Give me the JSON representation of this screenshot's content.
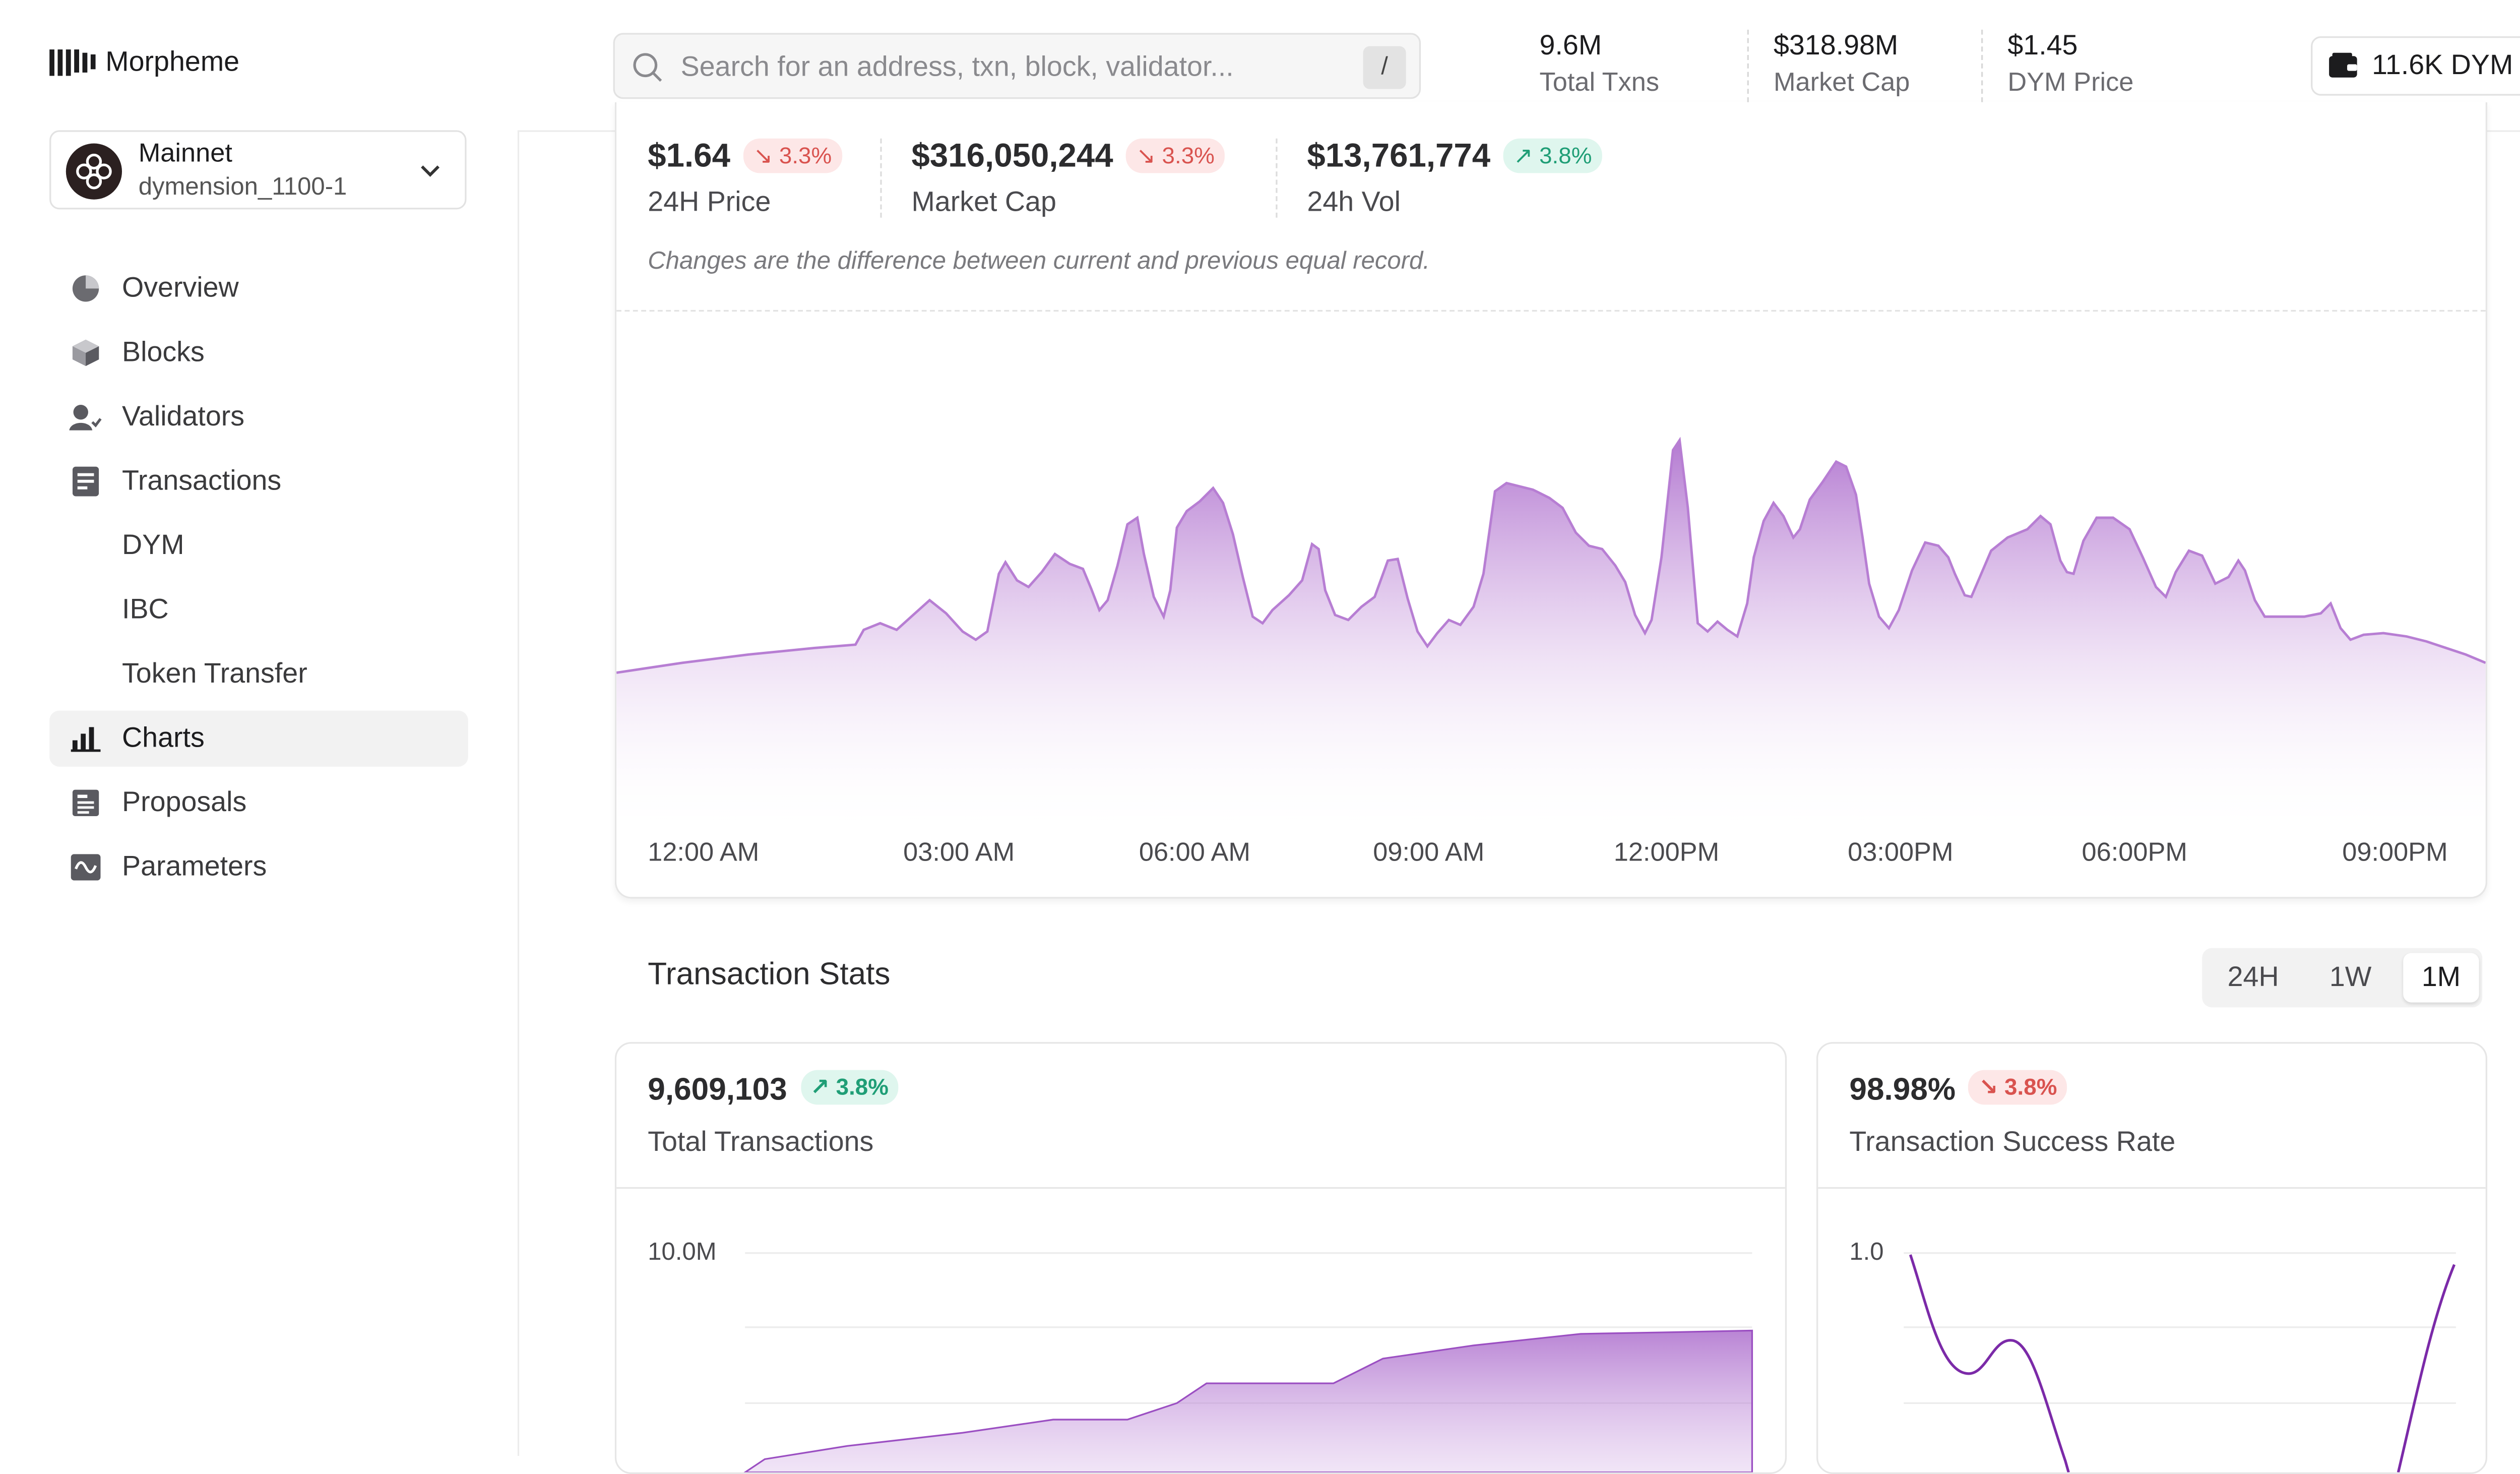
{
  "app": {
    "name": "Morpheme"
  },
  "network": {
    "title": "Mainnet",
    "chain_id": "dymension_1100-1"
  },
  "nav": [
    {
      "label": "Overview",
      "icon": "pie-icon"
    },
    {
      "label": "Blocks",
      "icon": "cube-icon"
    },
    {
      "label": "Validators",
      "icon": "validator-icon"
    },
    {
      "label": "Transactions",
      "icon": "document-icon"
    },
    {
      "label": "DYM",
      "sub": true
    },
    {
      "label": "IBC",
      "sub": true
    },
    {
      "label": "Token Transfer",
      "sub": true
    },
    {
      "label": "Charts",
      "icon": "bar-chart-icon",
      "active": true
    },
    {
      "label": "Proposals",
      "icon": "proposal-icon"
    },
    {
      "label": "Parameters",
      "icon": "wave-icon"
    }
  ],
  "search": {
    "placeholder": "Search for an address, txn, block, validator...",
    "shortcut": "/"
  },
  "header_stats": [
    {
      "value": "9.6M",
      "label": "Total Txns"
    },
    {
      "value": "$318.98M",
      "label": "Market Cap"
    },
    {
      "value": "$1.45",
      "label": "DYM Price"
    }
  ],
  "wallet": {
    "label": "11.6K DYM"
  },
  "market": {
    "metrics": [
      {
        "value": "$1.64",
        "change": "3.3%",
        "direction": "down",
        "label": "24H Price"
      },
      {
        "value": "$316,050,244",
        "change": "3.3%",
        "direction": "down",
        "label": "Market Cap"
      },
      {
        "value": "$13,761,774",
        "change": "3.8%",
        "direction": "up",
        "label": "24h Vol"
      }
    ],
    "note": "Changes are the difference between current and previous equal record."
  },
  "colors": {
    "accent": "#9b4fc2",
    "down": "#d9534f",
    "up": "#1f9e76"
  },
  "chart_data": [
    {
      "type": "area",
      "x": [
        "12:00 AM",
        "03:00 AM",
        "06:00 AM",
        "09:00 AM",
        "12:00PM",
        "03:00PM",
        "06:00PM",
        "09:00PM"
      ],
      "values": [
        0.1,
        0.18,
        0.55,
        0.38,
        0.62,
        0.55,
        0.48,
        0.12
      ],
      "grid": false
    },
    {
      "type": "area",
      "title": "Total Transactions",
      "ylabel_top": "10.0M",
      "ylim": [
        0,
        10000000
      ],
      "values": [
        0.3,
        0.35,
        0.45,
        0.52,
        0.6,
        0.6,
        0.72,
        0.72,
        0.78,
        0.82,
        0.84,
        0.85,
        0.86
      ],
      "grid": true
    },
    {
      "type": "line",
      "title": "Transaction Success Rate",
      "ylabel_top": "1.0",
      "ylim": [
        0,
        1
      ],
      "grid": true
    }
  ],
  "tx_stats": {
    "title": "Transaction Stats",
    "ranges": [
      "24H",
      "1W",
      "1M"
    ],
    "active_range": "1M",
    "total": {
      "value": "9,609,103",
      "change": "3.8%",
      "direction": "up",
      "label": "Total Transactions",
      "y_top": "10.0M"
    },
    "success": {
      "value": "98.98%",
      "change": "3.8%",
      "direction": "down",
      "label": "Transaction Success Rate",
      "y_top": "1.0"
    }
  }
}
